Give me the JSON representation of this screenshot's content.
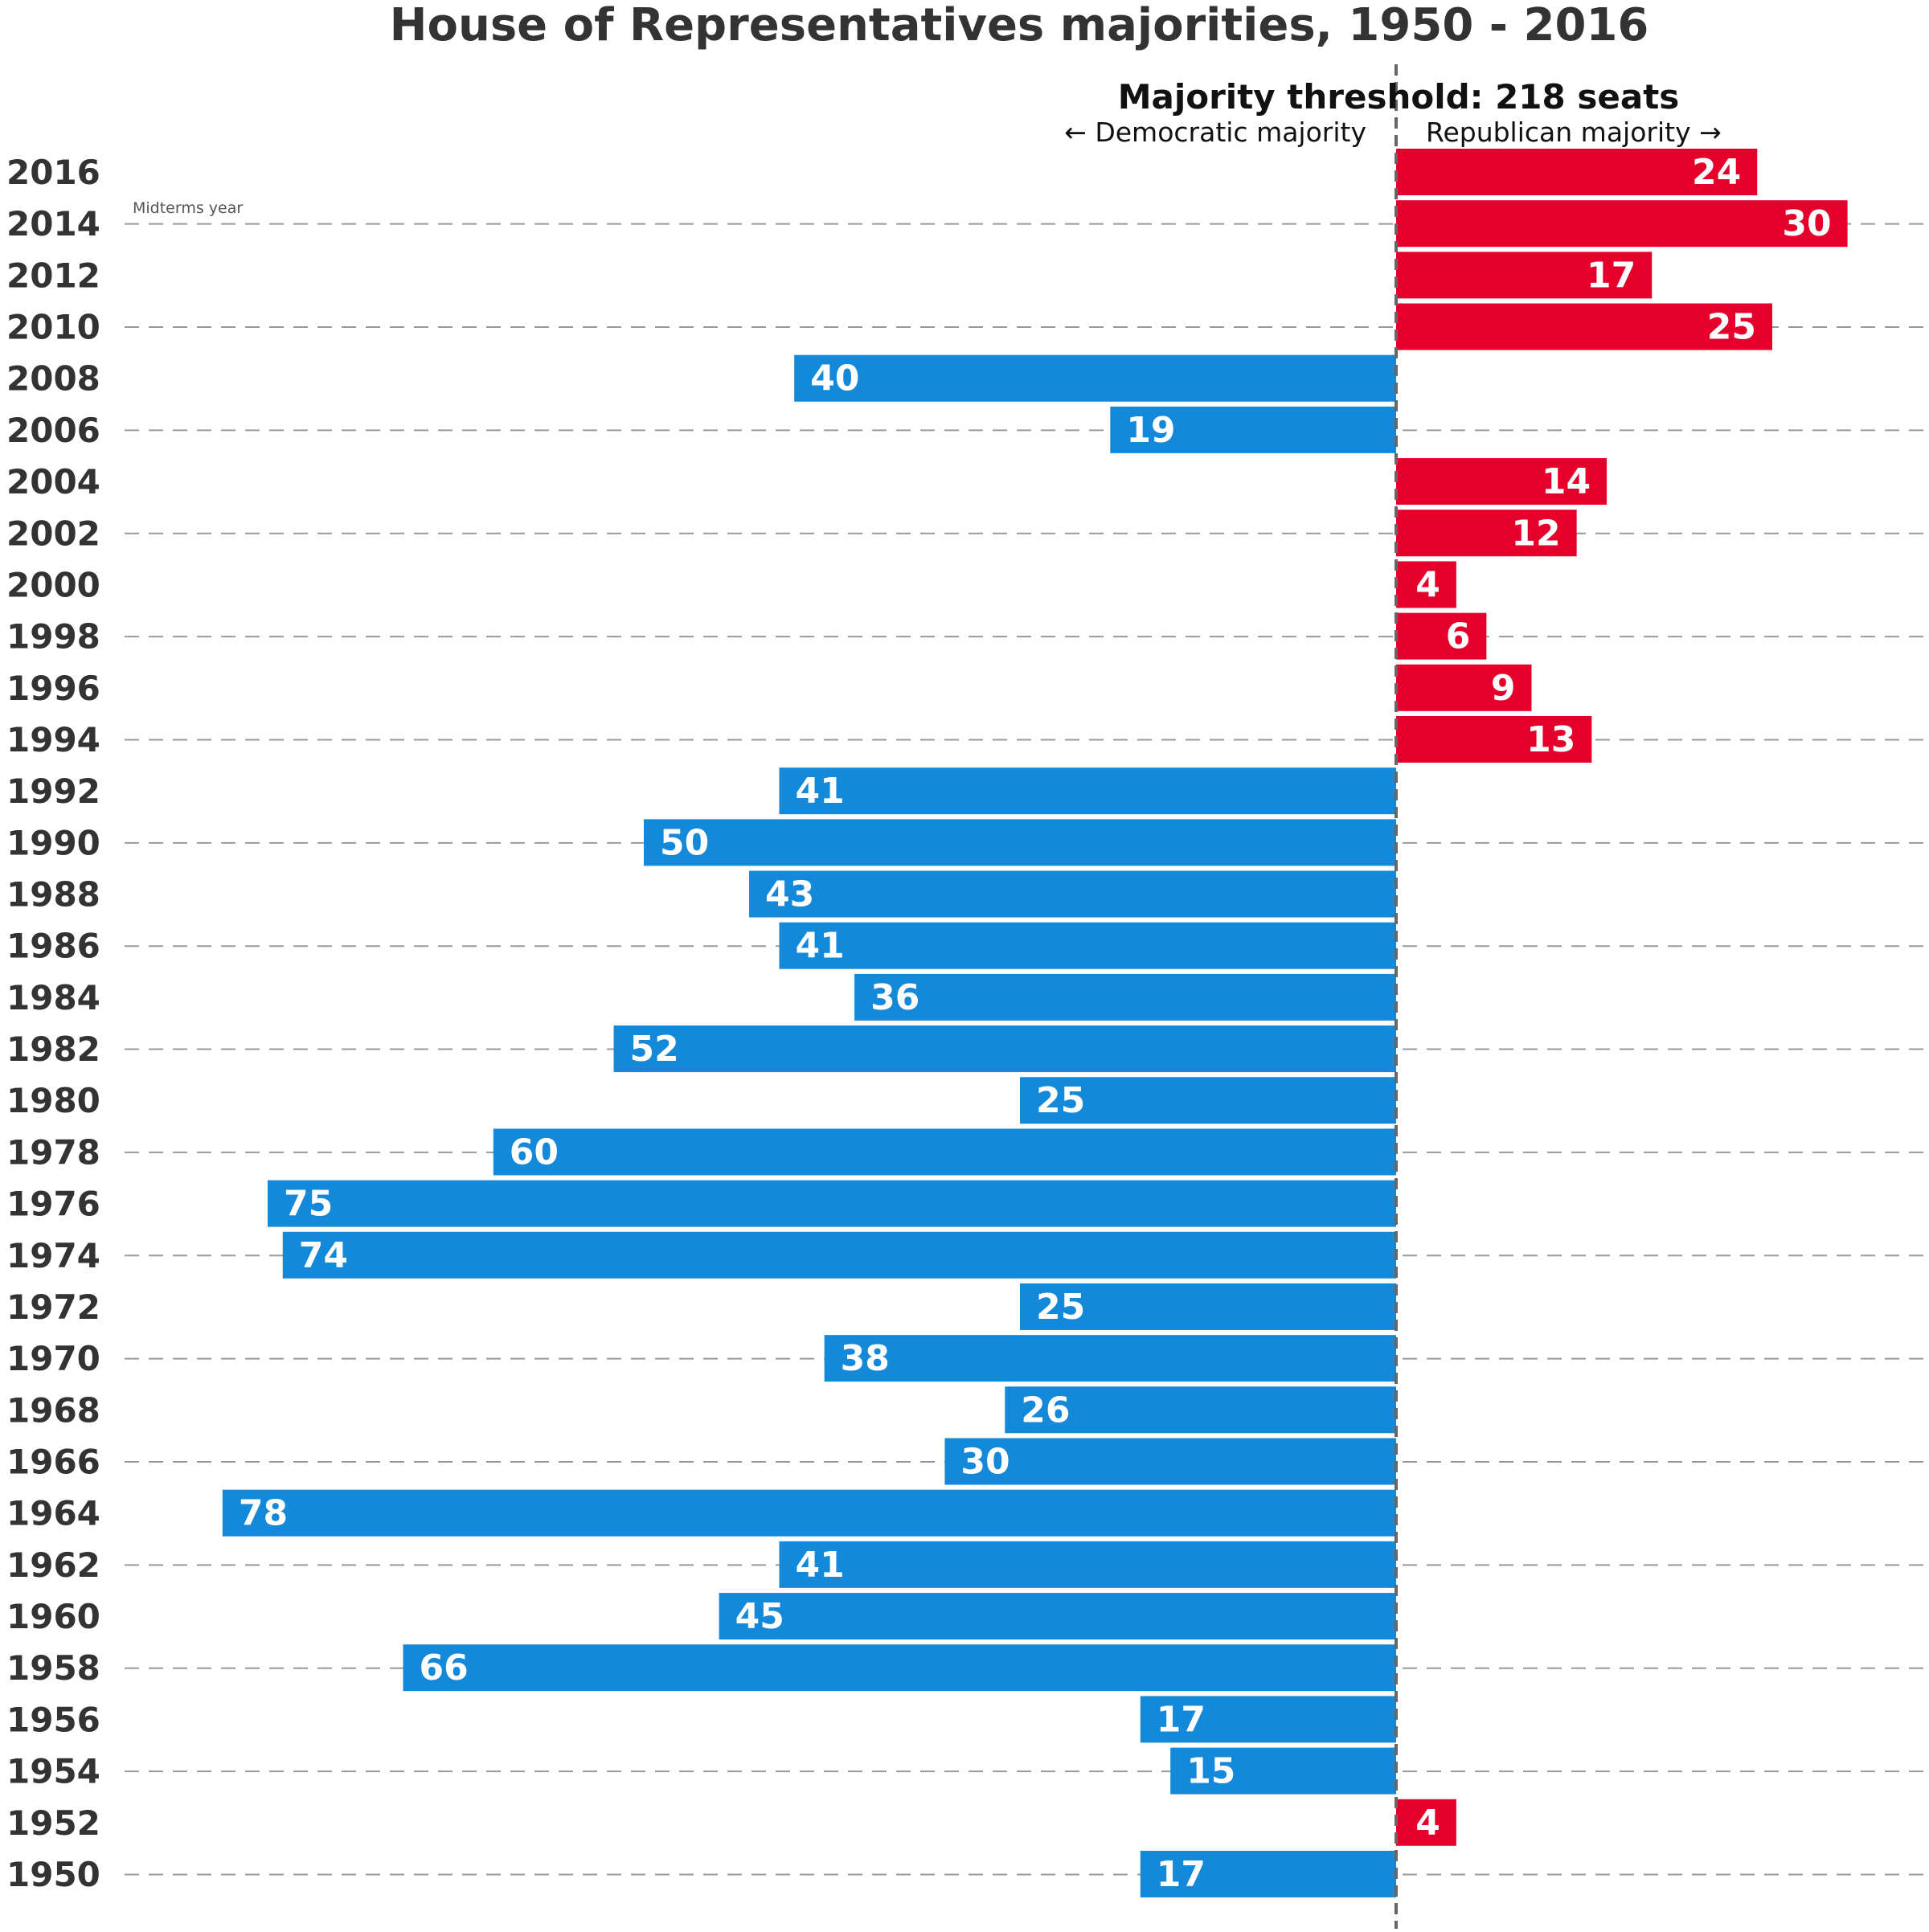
{
  "chart_data": {
    "type": "bar",
    "orientation": "horizontal-diverging",
    "title": "House of Representatives majorities, 1950 - 2016",
    "threshold_label": "Majority threshold: 218 seats",
    "left_label": "← Democratic majority",
    "right_label": "Republican majority →",
    "midterms_label": "Midterms year",
    "grid": "dashed lines on midterm years",
    "colors": {
      "democratic": "#1589d9",
      "republican": "#e4002b",
      "axis": "#666666",
      "grid": "#999999",
      "text": "#333333",
      "bar_label": "#ffffff"
    },
    "categories": [
      "2016",
      "2014",
      "2012",
      "2010",
      "2008",
      "2006",
      "2004",
      "2002",
      "2000",
      "1998",
      "1996",
      "1994",
      "1992",
      "1990",
      "1988",
      "1986",
      "1984",
      "1982",
      "1980",
      "1978",
      "1976",
      "1974",
      "1972",
      "1970",
      "1968",
      "1966",
      "1964",
      "1962",
      "1960",
      "1958",
      "1956",
      "1954",
      "1952",
      "1950"
    ],
    "midterms": [
      "2014",
      "2010",
      "2006",
      "2002",
      "1998",
      "1994",
      "1990",
      "1986",
      "1982",
      "1978",
      "1974",
      "1970",
      "1966",
      "1962",
      "1958",
      "1954",
      "1950"
    ],
    "values": [
      24,
      30,
      17,
      25,
      40,
      19,
      14,
      12,
      4,
      6,
      9,
      13,
      41,
      50,
      43,
      41,
      36,
      52,
      25,
      60,
      75,
      74,
      25,
      38,
      26,
      30,
      78,
      41,
      45,
      66,
      17,
      15,
      4,
      17
    ],
    "parties": [
      "R",
      "R",
      "R",
      "R",
      "D",
      "D",
      "R",
      "R",
      "R",
      "R",
      "R",
      "R",
      "D",
      "D",
      "D",
      "D",
      "D",
      "D",
      "D",
      "D",
      "D",
      "D",
      "D",
      "D",
      "D",
      "D",
      "D",
      "D",
      "D",
      "D",
      "D",
      "D",
      "R",
      "D"
    ]
  }
}
